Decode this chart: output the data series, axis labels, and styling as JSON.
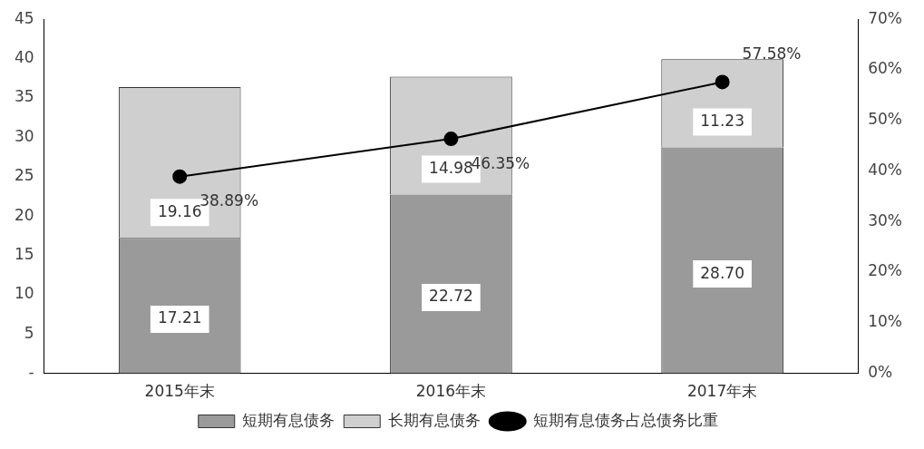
{
  "chart_data": {
    "type": "bar",
    "stacked": true,
    "categories": [
      "2015年末",
      "2016年末",
      "2017年末"
    ],
    "series": [
      {
        "name": "短期有息债务",
        "color": "#9a9a9a",
        "values": [
          17.21,
          22.72,
          28.7
        ],
        "value_labels": [
          "17.21",
          "22.72",
          "28.70"
        ]
      },
      {
        "name": "长期有息债务",
        "color": "#cfcfcf",
        "values": [
          19.16,
          14.98,
          11.23
        ],
        "value_labels": [
          "19.16",
          "14.98",
          "11.23"
        ]
      },
      {
        "name": "短期有息债务占总债务比重",
        "type": "line",
        "axis": "y2",
        "color": "#000000",
        "values": [
          38.89,
          46.35,
          57.58
        ],
        "value_labels": [
          "38.89%",
          "46.35%",
          "57.58%"
        ]
      }
    ],
    "ylim": [
      0,
      45
    ],
    "yticks": [
      {
        "value": 0,
        "label": "-"
      },
      5,
      10,
      15,
      20,
      25,
      30,
      35,
      40,
      45
    ],
    "y2lim": [
      0,
      70
    ],
    "y2ticks": [
      {
        "value": 0,
        "label": "0%"
      },
      {
        "value": 10,
        "label": "10%"
      },
      {
        "value": 20,
        "label": "20%"
      },
      {
        "value": 30,
        "label": "30%"
      },
      {
        "value": 40,
        "label": "40%"
      },
      {
        "value": 50,
        "label": "50%"
      },
      {
        "value": 60,
        "label": "60%"
      },
      {
        "value": 70,
        "label": "70%"
      }
    ],
    "legend": "bottom",
    "marker": "circle",
    "grid": false
  }
}
